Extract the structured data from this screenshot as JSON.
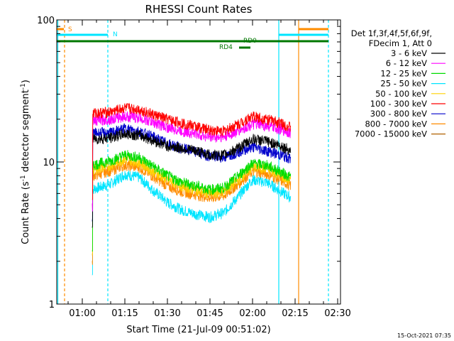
{
  "chart_data": {
    "type": "line",
    "title": "RHESSI Count Rates",
    "xlabel": "Start Time (21-Jul-09 00:51:02)",
    "ylabel_main": "Count Rate (s",
    "ylabel_sup": "-1",
    "ylabel_mid": " detector segment",
    "ylabel_sup2": "-1",
    "ylabel_end": ")",
    "yscale": "log",
    "ylim": [
      1,
      100
    ],
    "xlim_minutes": [
      51.0,
      151.0
    ],
    "x_ticks": [
      {
        "label": "01:00",
        "min": 60
      },
      {
        "label": "01:15",
        "min": 75
      },
      {
        "label": "01:30",
        "min": 90
      },
      {
        "label": "01:45",
        "min": 105
      },
      {
        "label": "02:00",
        "min": 120
      },
      {
        "label": "02:15",
        "min": 135
      },
      {
        "label": "02:30",
        "min": 150
      }
    ],
    "y_ticks": [
      {
        "label": "100",
        "value": 100
      },
      {
        "label": "10",
        "value": 10
      },
      {
        "label": "1",
        "value": 1
      }
    ],
    "legend_header": [
      "Det 1f,3f,4f,5f,6f,9f,",
      "FDecim 1, Att 0"
    ],
    "data_range_minutes": [
      63.5,
      133.5
    ],
    "series": [
      {
        "name": "3 - 6 keV",
        "color": "#000000",
        "x": [
          63.5,
          70,
          75,
          80,
          85,
          90,
          95,
          100,
          105,
          110,
          115,
          120,
          125,
          130,
          133.5
        ],
        "y": [
          14.5,
          14.8,
          15.8,
          15.5,
          14.2,
          13.0,
          12.5,
          12.0,
          11.2,
          11.2,
          12.5,
          14.5,
          14.0,
          13.0,
          12.0
        ]
      },
      {
        "name": "6 - 12 keV",
        "color": "#ff00ff",
        "x": [
          63.5,
          70,
          75,
          80,
          85,
          90,
          95,
          100,
          105,
          110,
          115,
          120,
          125,
          130,
          133.5
        ],
        "y": [
          19.5,
          20.0,
          21.0,
          20.5,
          19.0,
          17.5,
          16.5,
          15.8,
          15.0,
          15.0,
          16.5,
          18.5,
          18.0,
          17.0,
          16.0
        ]
      },
      {
        "name": "12 - 25 keV",
        "color": "#00dd00",
        "x": [
          63.5,
          70,
          75,
          80,
          85,
          90,
          95,
          100,
          105,
          110,
          115,
          120,
          125,
          130,
          133.5
        ],
        "y": [
          9.5,
          10.2,
          11.2,
          10.8,
          9.3,
          8.0,
          7.2,
          6.8,
          6.4,
          6.6,
          8.0,
          9.8,
          9.5,
          8.5,
          7.8
        ]
      },
      {
        "name": "25 - 50 keV",
        "color": "#00e5ff",
        "x": [
          63.5,
          70,
          75,
          80,
          85,
          90,
          95,
          100,
          105,
          110,
          115,
          120,
          125,
          130,
          133.5
        ],
        "y": [
          6.4,
          7.0,
          8.2,
          7.8,
          6.3,
          5.2,
          4.6,
          4.3,
          4.1,
          4.4,
          5.7,
          7.5,
          7.2,
          6.2,
          5.6
        ]
      },
      {
        "name": "50 - 100 keV",
        "color": "#ffd000",
        "x": [
          63.5,
          70,
          75,
          80,
          85,
          90,
          95,
          100,
          105,
          110,
          115,
          120,
          125,
          130,
          133.5
        ],
        "y": [
          8.8,
          9.5,
          10.5,
          10.0,
          8.6,
          7.5,
          6.8,
          6.4,
          6.0,
          6.2,
          7.5,
          9.2,
          9.0,
          8.0,
          7.3
        ]
      },
      {
        "name": "100 - 300 keV",
        "color": "#ff0000",
        "x": [
          63.5,
          70,
          75,
          80,
          85,
          90,
          95,
          100,
          105,
          110,
          115,
          120,
          125,
          130,
          133.5
        ],
        "y": [
          22.0,
          22.5,
          24.0,
          23.5,
          21.5,
          20.0,
          18.8,
          17.8,
          16.8,
          16.5,
          18.5,
          21.0,
          20.0,
          18.8,
          17.5
        ]
      },
      {
        "name": "300 - 800 keV",
        "color": "#0000cc",
        "x": [
          63.5,
          70,
          75,
          80,
          85,
          90,
          95,
          100,
          105,
          110,
          115,
          120,
          125,
          130,
          133.5
        ],
        "y": [
          16.0,
          16.0,
          17.2,
          16.5,
          15.0,
          13.5,
          12.5,
          11.8,
          11.0,
          10.8,
          11.8,
          12.8,
          12.0,
          11.2,
          10.5
        ]
      },
      {
        "name": "800 - 7000 keV",
        "color": "#ff8c00",
        "x": [
          63.5,
          70,
          75,
          80,
          85,
          90,
          95,
          100,
          105,
          110,
          115,
          120,
          125,
          130,
          133.5
        ],
        "y": [
          8.0,
          8.7,
          9.5,
          9.2,
          7.9,
          6.8,
          6.2,
          5.9,
          5.6,
          5.8,
          7.0,
          8.6,
          8.3,
          7.4,
          6.8
        ]
      },
      {
        "name": "7000 - 15000 keV",
        "color": "#b06000",
        "x": [],
        "y": []
      }
    ],
    "annotations": [
      {
        "text": "S",
        "color": "#ff8c00"
      },
      {
        "text": "N",
        "color": "#00e5ff"
      },
      {
        "text": "RD0",
        "color": "#007700"
      },
      {
        "text": "RD4",
        "color": "#007700"
      }
    ]
  },
  "colors": {
    "saa": "#ff8c00",
    "night": "#00e5ff",
    "decim": "#007700"
  },
  "timestamp": "15-Oct-2021 07:35"
}
